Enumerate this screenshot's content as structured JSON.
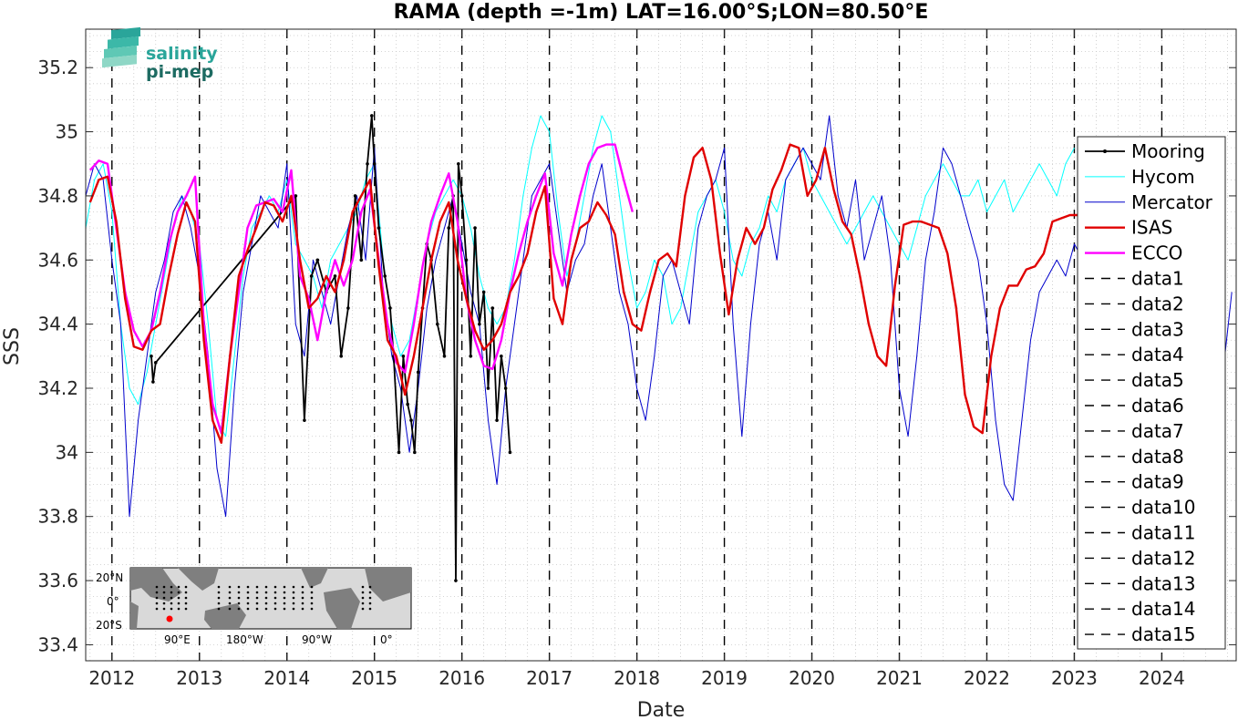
{
  "chart_data": {
    "type": "line",
    "title": "RAMA (depth =-1m) LAT=16.00°S;LON=80.50°E",
    "xlabel": "Date",
    "ylabel": "SSS",
    "xlim": [
      2011.7,
      2024.85
    ],
    "ylim": [
      33.35,
      35.32
    ],
    "x_ticks": [
      2012,
      2013,
      2014,
      2015,
      2016,
      2017,
      2018,
      2019,
      2020,
      2021,
      2022,
      2023,
      2024
    ],
    "y_ticks": [
      33.4,
      33.6,
      33.8,
      34,
      34.2,
      34.4,
      34.6,
      34.8,
      35,
      35.2
    ],
    "y_tick_labels": [
      "33.4",
      "33.6",
      "33.8",
      "34",
      "34.2",
      "34.4",
      "34.6",
      "34.8",
      "35",
      "35.2"
    ],
    "grid": true,
    "legend_position": "right",
    "year_markers": [
      2012,
      2013,
      2014,
      2015,
      2016,
      2017,
      2018,
      2019,
      2020,
      2021,
      2022,
      2023,
      2024
    ],
    "series": [
      {
        "name": "Mooring",
        "color": "#000000",
        "style": "solid-dots",
        "x": [
          2012.45,
          2012.47,
          2012.5,
          2014.1,
          2014.2,
          2014.28,
          2014.35,
          2014.45,
          2014.55,
          2014.62,
          2014.7,
          2014.78,
          2014.85,
          2014.92,
          2014.97,
          2015.0,
          2015.05,
          2015.12,
          2015.18,
          2015.22,
          2015.28,
          2015.33,
          2015.38,
          2015.42,
          2015.46,
          2015.5,
          2015.55,
          2015.6,
          2015.65,
          2015.72,
          2015.8,
          2015.85,
          2015.9,
          2015.93,
          2015.96,
          2016.0,
          2016.05,
          2016.1,
          2016.15,
          2016.2,
          2016.25,
          2016.3,
          2016.35,
          2016.4,
          2016.45,
          2016.5,
          2016.55
        ],
        "y": [
          34.3,
          34.22,
          34.28,
          34.8,
          34.1,
          34.55,
          34.6,
          34.5,
          34.55,
          34.3,
          34.45,
          34.8,
          34.6,
          34.9,
          35.05,
          34.9,
          34.7,
          34.55,
          34.45,
          34.3,
          34.0,
          34.3,
          34.15,
          34.1,
          34.0,
          34.25,
          34.45,
          34.65,
          34.6,
          34.4,
          34.3,
          34.7,
          34.8,
          33.6,
          34.9,
          34.8,
          34.6,
          34.3,
          34.7,
          34.4,
          34.5,
          34.2,
          34.45,
          34.1,
          34.3,
          34.2,
          34.0
        ]
      },
      {
        "name": "Hycom",
        "color": "#00ffff",
        "style": "thin",
        "x": [
          2011.7,
          2011.8,
          2011.9,
          2012.0,
          2012.1,
          2012.2,
          2012.3,
          2012.4,
          2012.5,
          2012.6,
          2012.7,
          2012.8,
          2012.9,
          2013.0,
          2013.1,
          2013.2,
          2013.3,
          2013.4,
          2013.5,
          2013.6,
          2013.7,
          2013.8,
          2013.9,
          2014.0,
          2014.1,
          2014.2,
          2014.3,
          2014.4,
          2014.5,
          2014.6,
          2014.7,
          2014.8,
          2014.9,
          2015.0,
          2015.1,
          2015.2,
          2015.3,
          2015.4,
          2015.5,
          2015.6,
          2015.7,
          2015.8,
          2015.9,
          2016.0,
          2016.1,
          2016.2,
          2016.3,
          2016.4,
          2016.5,
          2016.6,
          2016.7,
          2016.8,
          2016.9,
          2017.0,
          2017.1,
          2017.2,
          2017.3,
          2017.4,
          2017.5,
          2017.6,
          2017.7,
          2017.8,
          2017.9,
          2018.0,
          2018.1,
          2018.2,
          2018.3,
          2018.4,
          2018.5,
          2018.6,
          2018.7,
          2018.8,
          2018.9,
          2019.0,
          2019.1,
          2019.2,
          2019.3,
          2019.4,
          2019.5,
          2019.6,
          2019.7,
          2019.8,
          2019.9,
          2020.0,
          2020.1,
          2020.2,
          2020.3,
          2020.4,
          2020.5,
          2020.6,
          2020.7,
          2020.8,
          2020.9,
          2021.0,
          2021.1,
          2021.2,
          2021.3,
          2021.4,
          2021.5,
          2021.6,
          2021.7,
          2021.8,
          2021.9,
          2022.0,
          2022.1,
          2022.2,
          2022.3,
          2022.4,
          2022.5,
          2022.6,
          2022.7,
          2022.8,
          2022.9,
          2023.0
        ],
        "y": [
          34.7,
          34.85,
          34.9,
          34.75,
          34.4,
          34.2,
          34.15,
          34.25,
          34.4,
          34.55,
          34.7,
          34.8,
          34.75,
          34.65,
          34.4,
          34.1,
          34.05,
          34.3,
          34.55,
          34.7,
          34.75,
          34.8,
          34.75,
          34.85,
          34.65,
          34.6,
          34.55,
          34.45,
          34.6,
          34.65,
          34.7,
          34.75,
          34.85,
          34.9,
          34.6,
          34.4,
          34.3,
          34.35,
          34.5,
          34.65,
          34.75,
          34.8,
          34.85,
          34.8,
          34.7,
          34.55,
          34.45,
          34.4,
          34.45,
          34.6,
          34.8,
          34.95,
          35.05,
          35.0,
          34.75,
          34.55,
          34.65,
          34.8,
          34.95,
          35.05,
          35.0,
          34.8,
          34.6,
          34.45,
          34.5,
          34.6,
          34.55,
          34.4,
          34.45,
          34.6,
          34.75,
          34.8,
          34.85,
          34.75,
          34.6,
          34.55,
          34.65,
          34.7,
          34.8,
          34.75,
          34.85,
          34.9,
          34.95,
          34.85,
          34.8,
          34.75,
          34.7,
          34.65,
          34.7,
          34.75,
          34.8,
          34.75,
          34.7,
          34.65,
          34.6,
          34.7,
          34.8,
          34.85,
          34.9,
          34.85,
          34.8,
          34.8,
          34.85,
          34.75,
          34.8,
          34.85,
          34.75,
          34.8,
          34.85,
          34.9,
          34.85,
          34.8,
          34.9,
          34.95
        ]
      },
      {
        "name": "Mercator",
        "color": "#0000cc",
        "style": "thin",
        "x": [
          2011.7,
          2011.8,
          2011.9,
          2012.0,
          2012.1,
          2012.2,
          2012.3,
          2012.4,
          2012.5,
          2012.6,
          2012.7,
          2012.8,
          2012.9,
          2013.0,
          2013.1,
          2013.2,
          2013.3,
          2013.4,
          2013.5,
          2013.6,
          2013.7,
          2013.8,
          2013.9,
          2014.0,
          2014.1,
          2014.2,
          2014.3,
          2014.4,
          2014.5,
          2014.6,
          2014.7,
          2014.8,
          2014.9,
          2015.0,
          2015.1,
          2015.2,
          2015.3,
          2015.4,
          2015.5,
          2015.6,
          2015.7,
          2015.8,
          2015.9,
          2016.0,
          2016.1,
          2016.2,
          2016.3,
          2016.4,
          2016.5,
          2016.6,
          2016.7,
          2016.8,
          2016.9,
          2017.0,
          2017.1,
          2017.2,
          2017.3,
          2017.4,
          2017.5,
          2017.6,
          2017.7,
          2017.8,
          2017.9,
          2018.0,
          2018.1,
          2018.2,
          2018.3,
          2018.4,
          2018.5,
          2018.6,
          2018.7,
          2018.8,
          2018.9,
          2019.0,
          2019.1,
          2019.2,
          2019.3,
          2019.4,
          2019.5,
          2019.6,
          2019.7,
          2019.8,
          2019.9,
          2020.0,
          2020.1,
          2020.2,
          2020.3,
          2020.4,
          2020.5,
          2020.6,
          2020.7,
          2020.8,
          2020.9,
          2021.0,
          2021.1,
          2021.2,
          2021.3,
          2021.4,
          2021.5,
          2021.6,
          2021.7,
          2021.8,
          2021.9,
          2022.0,
          2022.1,
          2022.2,
          2022.3,
          2022.4,
          2022.5,
          2022.6,
          2022.7,
          2022.8,
          2022.9,
          2023.0,
          2023.1,
          2023.2,
          2023.3,
          2023.4,
          2023.5,
          2023.6,
          2023.7,
          2023.8,
          2023.9,
          2024.0,
          2024.1,
          2024.2,
          2024.3,
          2024.4,
          2024.5,
          2024.6,
          2024.7,
          2024.8
        ],
        "y": [
          34.8,
          34.9,
          34.85,
          34.6,
          34.4,
          33.8,
          34.1,
          34.3,
          34.5,
          34.6,
          34.75,
          34.8,
          34.7,
          34.55,
          34.3,
          33.95,
          33.8,
          34.2,
          34.5,
          34.65,
          34.8,
          34.75,
          34.7,
          34.9,
          34.4,
          34.3,
          34.6,
          34.5,
          34.4,
          34.55,
          34.7,
          34.8,
          34.6,
          34.95,
          34.5,
          34.3,
          34.2,
          34.0,
          34.2,
          34.45,
          34.6,
          34.7,
          34.8,
          34.65,
          34.5,
          34.4,
          34.1,
          33.9,
          34.2,
          34.4,
          34.6,
          34.8,
          34.85,
          34.9,
          34.7,
          34.5,
          34.6,
          34.65,
          34.8,
          34.9,
          34.7,
          34.5,
          34.4,
          34.2,
          34.1,
          34.3,
          34.55,
          34.6,
          34.5,
          34.4,
          34.7,
          34.8,
          34.85,
          34.95,
          34.4,
          34.05,
          34.4,
          34.65,
          34.75,
          34.6,
          34.85,
          34.9,
          34.95,
          34.9,
          34.85,
          35.05,
          34.8,
          34.7,
          34.85,
          34.6,
          34.7,
          34.8,
          34.6,
          34.2,
          34.05,
          34.3,
          34.6,
          34.75,
          34.95,
          34.9,
          34.8,
          34.7,
          34.6,
          34.4,
          34.1,
          33.9,
          33.85,
          34.1,
          34.35,
          34.5,
          34.55,
          34.6,
          34.55,
          34.65,
          34.6,
          34.5,
          34.3,
          34.4,
          34.55,
          34.5,
          34.3,
          34.45,
          34.6,
          34.7,
          34.75,
          34.8,
          34.65,
          34.55,
          34.5,
          34.3,
          34.25,
          34.5
        ]
      },
      {
        "name": "ISAS",
        "color": "#e00000",
        "style": "thick",
        "x": [
          2011.75,
          2011.85,
          2011.95,
          2012.05,
          2012.15,
          2012.25,
          2012.35,
          2012.45,
          2012.55,
          2012.65,
          2012.75,
          2012.85,
          2012.95,
          2013.05,
          2013.15,
          2013.25,
          2013.35,
          2013.45,
          2013.55,
          2013.65,
          2013.75,
          2013.85,
          2013.95,
          2014.05,
          2014.15,
          2014.25,
          2014.35,
          2014.45,
          2014.55,
          2014.65,
          2014.75,
          2014.85,
          2014.95,
          2015.05,
          2015.15,
          2015.25,
          2015.35,
          2015.45,
          2015.55,
          2015.65,
          2015.75,
          2015.85,
          2015.95,
          2016.05,
          2016.15,
          2016.25,
          2016.35,
          2016.45,
          2016.55,
          2016.65,
          2016.75,
          2016.85,
          2016.95,
          2017.05,
          2017.15,
          2017.25,
          2017.35,
          2017.45,
          2017.55,
          2017.65,
          2017.75,
          2017.85,
          2017.95,
          2018.05,
          2018.15,
          2018.25,
          2018.35,
          2018.45,
          2018.55,
          2018.65,
          2018.75,
          2018.85,
          2018.95,
          2019.05,
          2019.15,
          2019.25,
          2019.35,
          2019.45,
          2019.55,
          2019.65,
          2019.75,
          2019.85,
          2019.95,
          2020.05,
          2020.15,
          2020.25,
          2020.35,
          2020.45,
          2020.55,
          2020.65,
          2020.75,
          2020.85,
          2020.95,
          2021.05,
          2021.15,
          2021.25,
          2021.35,
          2021.45,
          2021.55,
          2021.65,
          2021.75,
          2021.85,
          2021.95,
          2022.05,
          2022.15,
          2022.25,
          2022.35,
          2022.45,
          2022.55,
          2022.65,
          2022.75,
          2022.85,
          2022.95,
          2023.05,
          2023.15
        ],
        "y": [
          34.78,
          34.85,
          34.86,
          34.72,
          34.48,
          34.33,
          34.32,
          34.38,
          34.4,
          34.55,
          34.68,
          34.78,
          34.72,
          34.35,
          34.1,
          34.03,
          34.3,
          34.55,
          34.63,
          34.7,
          34.78,
          34.77,
          34.72,
          34.8,
          34.6,
          34.45,
          34.48,
          34.55,
          34.5,
          34.6,
          34.75,
          34.8,
          34.85,
          34.58,
          34.35,
          34.3,
          34.18,
          34.3,
          34.45,
          34.6,
          34.72,
          34.78,
          34.6,
          34.48,
          34.38,
          34.32,
          34.35,
          34.4,
          34.5,
          34.55,
          34.62,
          34.75,
          34.83,
          34.48,
          34.4,
          34.6,
          34.7,
          34.72,
          34.78,
          34.74,
          34.68,
          34.5,
          34.4,
          34.38,
          34.5,
          34.6,
          34.62,
          34.58,
          34.8,
          34.92,
          34.95,
          34.85,
          34.62,
          34.43,
          34.6,
          34.7,
          34.65,
          34.7,
          34.82,
          34.88,
          34.96,
          34.95,
          34.8,
          34.85,
          34.95,
          34.82,
          34.72,
          34.68,
          34.55,
          34.4,
          34.3,
          34.27,
          34.52,
          34.71,
          34.72,
          34.72,
          34.71,
          34.7,
          34.62,
          34.45,
          34.18,
          34.08,
          34.06,
          34.3,
          34.45,
          34.52,
          34.52,
          34.57,
          34.58,
          34.62,
          34.72,
          34.73,
          34.74,
          34.74,
          34.74
        ]
      },
      {
        "name": "ECCO",
        "color": "#ff00ff",
        "style": "thick",
        "x": [
          2011.75,
          2011.85,
          2011.95,
          2012.05,
          2012.15,
          2012.25,
          2012.35,
          2012.45,
          2012.55,
          2012.65,
          2012.75,
          2012.85,
          2012.95,
          2013.05,
          2013.15,
          2013.25,
          2013.35,
          2013.45,
          2013.55,
          2013.65,
          2013.75,
          2013.85,
          2013.95,
          2014.05,
          2014.15,
          2014.25,
          2014.35,
          2014.45,
          2014.55,
          2014.65,
          2014.75,
          2014.85,
          2014.95,
          2015.05,
          2015.15,
          2015.25,
          2015.35,
          2015.45,
          2015.55,
          2015.65,
          2015.75,
          2015.85,
          2015.95,
          2016.05,
          2016.15,
          2016.25,
          2016.35,
          2016.45,
          2016.55,
          2016.65,
          2016.75,
          2016.85,
          2016.95,
          2017.05,
          2017.15,
          2017.25,
          2017.35,
          2017.45,
          2017.55,
          2017.65,
          2017.75,
          2017.85,
          2017.95
        ],
        "y": [
          34.88,
          34.91,
          34.9,
          34.7,
          34.5,
          34.38,
          34.33,
          34.38,
          34.5,
          34.65,
          34.75,
          34.8,
          34.86,
          34.4,
          34.15,
          34.06,
          34.3,
          34.5,
          34.7,
          34.77,
          34.78,
          34.79,
          34.75,
          34.88,
          34.55,
          34.48,
          34.35,
          34.5,
          34.6,
          34.52,
          34.6,
          34.75,
          34.82,
          34.6,
          34.4,
          34.28,
          34.25,
          34.4,
          34.58,
          34.72,
          34.8,
          34.87,
          34.72,
          34.48,
          34.35,
          34.27,
          34.26,
          34.35,
          34.5,
          34.62,
          34.72,
          34.8,
          34.87,
          34.62,
          34.52,
          34.68,
          34.8,
          34.9,
          34.95,
          34.96,
          34.96,
          34.85,
          34.75
        ]
      }
    ],
    "legend": [
      "Mooring",
      "Hycom",
      "Mercator",
      "ISAS",
      "ECCO",
      "data1",
      "data2",
      "data3",
      "data4",
      "data5",
      "data6",
      "data7",
      "data8",
      "data9",
      "data10",
      "data11",
      "data12",
      "data13",
      "data14",
      "data15"
    ]
  },
  "logo": {
    "line1": "salinity",
    "line2": "pi-mep"
  },
  "inset_map": {
    "lat_labels": [
      "20°N",
      "0°",
      "20°S"
    ],
    "lon_labels": [
      "90°E",
      "180°W",
      "90°W",
      "0°"
    ]
  }
}
